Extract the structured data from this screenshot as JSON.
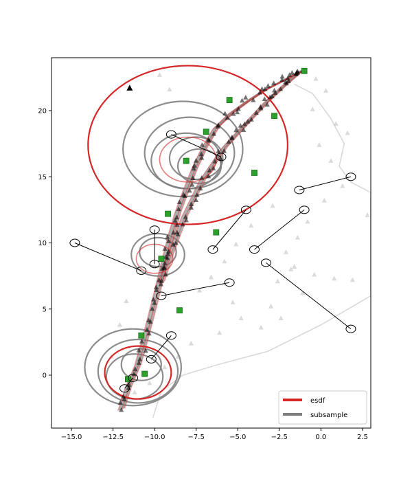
{
  "chart_data": {
    "type": "scatter",
    "title": "",
    "xlabel": "",
    "ylabel": "",
    "xlim": [
      -16.2,
      3.0
    ],
    "ylim": [
      -4.0,
      24.0
    ],
    "xticks": [
      -15.0,
      -12.5,
      -10.0,
      -7.5,
      -5.0,
      -2.5,
      0.0,
      2.5
    ],
    "xtick_labels": [
      "−15.0",
      "−12.5",
      "−10.0",
      "−7.5",
      "−5.0",
      "−2.5",
      "0.0",
      "2.5"
    ],
    "yticks": [
      0,
      5,
      10,
      15,
      20
    ],
    "ytick_labels": [
      "0",
      "5",
      "10",
      "15",
      "20"
    ],
    "grid": false,
    "legend_position": "lower-right",
    "colors": {
      "esdf": "#d62728",
      "subsample": "#808080",
      "green": "#2ca02c",
      "background_curve": "#d9d9d9"
    },
    "series": [
      {
        "name": "esdf",
        "color": "#d62728",
        "style": "line"
      },
      {
        "name": "subsample",
        "color": "#808080",
        "style": "line"
      }
    ],
    "esdf_circles": [
      {
        "cx": -8.0,
        "cy": 17.4,
        "r": 6.0
      },
      {
        "cx": -11.0,
        "cy": 0.2,
        "r": 2.0
      },
      {
        "cx": -8.0,
        "cy": 16.3,
        "r": 1.7
      },
      {
        "cx": -10.0,
        "cy": 8.8,
        "r": 1.1
      }
    ],
    "subsample_circles": [
      {
        "cx": -8.3,
        "cy": 17.1,
        "r": 3.6
      },
      {
        "cx": -7.9,
        "cy": 16.8,
        "r": 2.7
      },
      {
        "cx": -8.1,
        "cy": 16.2,
        "r": 2.1
      },
      {
        "cx": -7.5,
        "cy": 16.4,
        "r": 1.6
      },
      {
        "cx": -7.3,
        "cy": 15.8,
        "r": 1.3
      },
      {
        "cx": -11.3,
        "cy": 0.6,
        "r": 2.9
      },
      {
        "cx": -11.0,
        "cy": 0.3,
        "r": 2.4
      },
      {
        "cx": -11.2,
        "cy": -0.1,
        "r": 1.7
      },
      {
        "cx": -10.8,
        "cy": 0.8,
        "r": 1.2
      },
      {
        "cx": -9.8,
        "cy": 9.1,
        "r": 1.6
      },
      {
        "cx": -9.8,
        "cy": 9.3,
        "r": 1.1
      }
    ],
    "trajectory_main": {
      "x": [
        -12.0,
        -11.6,
        -11.0,
        -10.6,
        -10.2,
        -9.8,
        -9.4,
        -9.0,
        -8.6,
        -8.1,
        -7.6,
        -7.0,
        -6.3,
        -5.4,
        -4.4,
        -3.3,
        -2.2,
        -1.2
      ],
      "y": [
        -2.6,
        -1.0,
        0.8,
        2.6,
        4.5,
        6.5,
        8.6,
        10.6,
        12.3,
        14.0,
        15.6,
        17.2,
        18.7,
        19.8,
        20.7,
        21.6,
        22.3,
        23.0
      ]
    },
    "trajectory_branch": {
      "x": [
        -9.6,
        -9.0,
        -8.2,
        -7.1,
        -5.8,
        -4.5,
        -3.3,
        -2.2,
        -1.2
      ],
      "y": [
        7.0,
        9.3,
        12.0,
        14.8,
        17.2,
        19.0,
        20.6,
        21.9,
        23.0
      ]
    },
    "background_boundary": {
      "x": [
        -1.6,
        -0.5,
        0.6,
        1.4,
        1.1,
        1.8,
        3.0,
        3.0,
        0.0,
        -3.2,
        -6.2,
        -8.3,
        -9.6,
        -10.1
      ],
      "y": [
        22.0,
        21.3,
        19.4,
        17.5,
        15.8,
        14.6,
        13.8,
        6.0,
        3.8,
        1.8,
        0.8,
        0.0,
        -1.2,
        -3.2
      ]
    },
    "start_marker": {
      "x": -11.5,
      "y": 21.7
    },
    "green_markers": {
      "x": [
        -1.0,
        -5.5,
        -2.8,
        -6.9,
        -4.0,
        -9.2,
        -6.3,
        -8.1,
        -9.6,
        -8.5,
        -10.8,
        -10.6,
        -11.6
      ],
      "y": [
        23.0,
        20.8,
        19.6,
        18.4,
        15.3,
        12.2,
        10.8,
        16.2,
        8.8,
        4.9,
        3.0,
        0.1,
        -0.3
      ]
    },
    "gray_triangles": {
      "x": [
        -0.3,
        0.3,
        -0.5,
        0.9,
        1.6,
        -0.1,
        0.6,
        1.3,
        0.2,
        -0.8,
        -1.4,
        -2.1,
        -1.8,
        -2.6,
        -1.1,
        -3.0,
        -2.4,
        -3.6,
        -1.6,
        -0.4,
        0.8,
        1.9,
        2.8,
        -2.9,
        -4.2,
        -5.1,
        -5.8,
        -6.6,
        -7.3,
        -5.3,
        -4.8,
        -6.1,
        -7.8,
        -8.6,
        -9.4,
        -10.3,
        -11.2,
        -12.1,
        -11.7,
        -12.6,
        -9.7,
        -9.1
      ],
      "y": [
        22.4,
        21.5,
        20.1,
        19.0,
        18.3,
        17.4,
        16.2,
        14.3,
        13.2,
        11.6,
        10.4,
        9.3,
        8.0,
        7.1,
        6.2,
        5.2,
        4.3,
        3.6,
        8.2,
        7.6,
        7.3,
        7.2,
        12.1,
        12.8,
        11.3,
        9.9,
        8.6,
        7.4,
        6.4,
        5.5,
        4.3,
        3.2,
        2.4,
        1.4,
        0.6,
        -0.6,
        -1.3,
        3.8,
        5.6,
        1.4,
        22.7,
        21.6
      ]
    },
    "annotations": [
      {
        "from": [
          -14.8,
          10.0
        ],
        "to": [
          -10.8,
          7.9
        ]
      },
      {
        "from": [
          -10.0,
          11.0
        ],
        "to": [
          -10.0,
          8.4
        ]
      },
      {
        "from": [
          -9.6,
          6.0
        ],
        "to": [
          -5.5,
          7.0
        ]
      },
      {
        "from": [
          -9.0,
          18.2
        ],
        "to": [
          -6.0,
          16.5
        ]
      },
      {
        "from": [
          -6.5,
          9.5
        ],
        "to": [
          -4.5,
          12.5
        ]
      },
      {
        "from": [
          -4.0,
          9.5
        ],
        "to": [
          -1.0,
          12.5
        ]
      },
      {
        "from": [
          -1.3,
          14.0
        ],
        "to": [
          1.8,
          15.0
        ]
      },
      {
        "from": [
          -3.3,
          8.5
        ],
        "to": [
          1.8,
          3.5
        ]
      },
      {
        "from": [
          -9.0,
          3.0
        ],
        "to": [
          -10.2,
          1.2
        ]
      },
      {
        "from": [
          -11.8,
          -1.0
        ],
        "to": [
          -11.3,
          -0.2
        ]
      }
    ]
  }
}
